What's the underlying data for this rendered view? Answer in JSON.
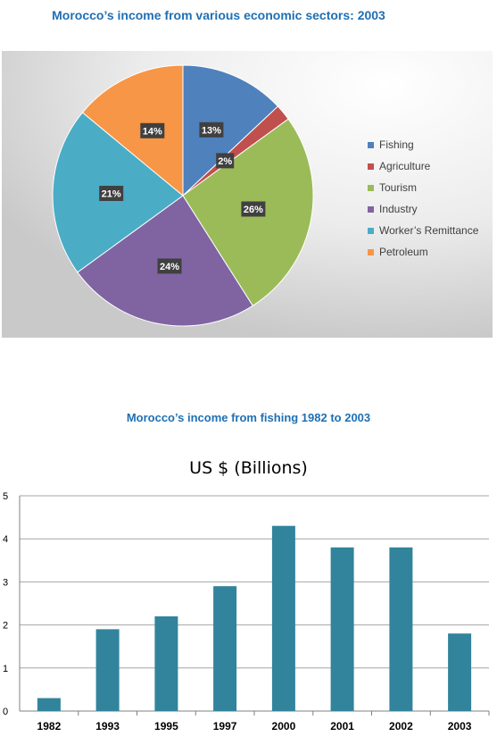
{
  "chart_data": [
    {
      "type": "pie",
      "title": "Morocco’s income from various economic sectors: 2003",
      "labels": [
        "Fishing",
        "Agriculture",
        "Tourism",
        "Industry",
        "Worker’s Remittance",
        "Petroleum"
      ],
      "values": [
        13,
        2,
        26,
        24,
        21,
        14
      ],
      "data_labels": [
        "13%",
        "2%",
        "26%",
        "24%",
        "21%",
        "14%"
      ],
      "colors": [
        "#4f81bd",
        "#c0504d",
        "#9bbb59",
        "#8064a2",
        "#4bacc6",
        "#f79646"
      ],
      "legend_placement": "right"
    },
    {
      "type": "bar",
      "title": "Morocco’s income from fishing 1982 to 2003",
      "subtitle": "US $ (Billions)",
      "categories": [
        "1982",
        "1993",
        "1995",
        "1997",
        "2000",
        "2001",
        "2002",
        "2003"
      ],
      "values": [
        0.3,
        1.9,
        2.2,
        2.9,
        4.3,
        3.8,
        3.8,
        1.8
      ],
      "ylim": [
        0,
        5
      ],
      "yticks": [
        "0",
        "1",
        "2",
        "3",
        "4",
        "5"
      ],
      "bar_color": "#31849b",
      "grid": true
    }
  ]
}
